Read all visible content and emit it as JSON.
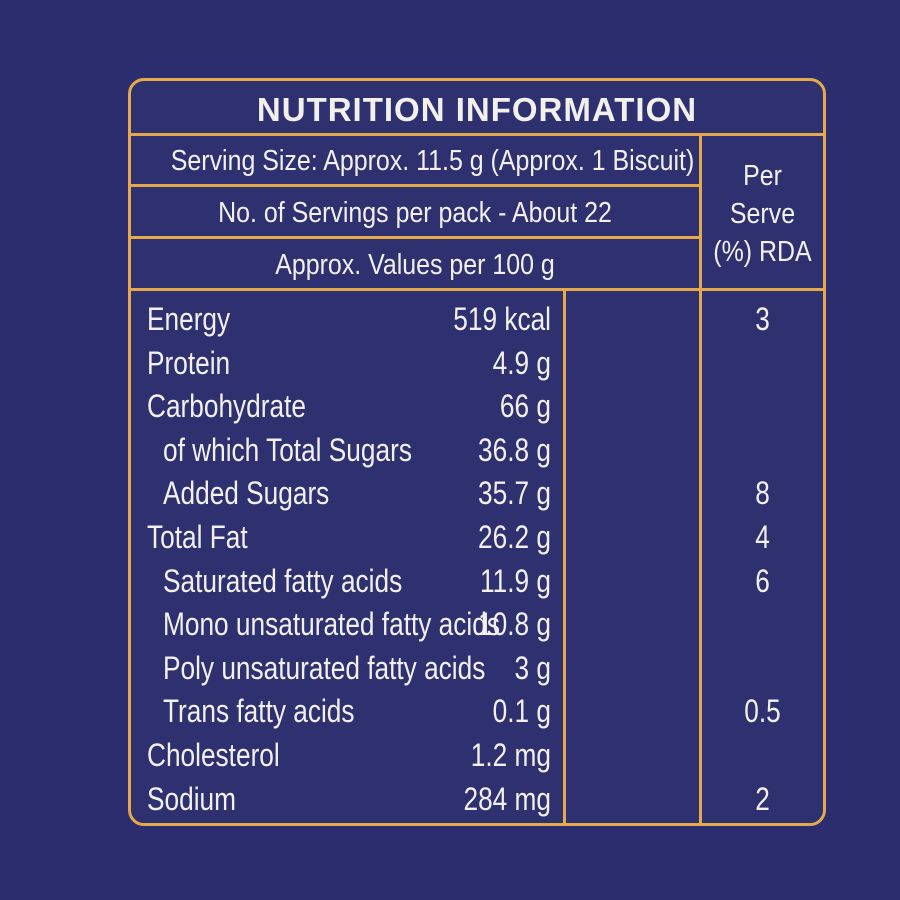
{
  "title": "NUTRITION INFORMATION",
  "serving_size": "Serving Size: Approx. 11.5 g (Approx. 1 Biscuit)",
  "servings_per_pack": "No. of Servings per pack - About 22",
  "values_per": "Approx. Values per 100 g",
  "rda_header": [
    "Per",
    "Serve",
    "(%) RDA"
  ],
  "rows": [
    {
      "name": "Energy",
      "value": "519 kcal",
      "rda": "3",
      "indent": false
    },
    {
      "name": "Protein",
      "value": "4.9 g",
      "rda": "",
      "indent": false
    },
    {
      "name": "Carbohydrate",
      "value": "66 g",
      "rda": "",
      "indent": false
    },
    {
      "name": "of which Total Sugars",
      "value": "36.8 g",
      "rda": "",
      "indent": true
    },
    {
      "name": "Added Sugars",
      "value": "35.7 g",
      "rda": "8",
      "indent": true
    },
    {
      "name": "Total Fat",
      "value": "26.2 g",
      "rda": "4",
      "indent": false
    },
    {
      "name": "Saturated fatty acids",
      "value": "11.9 g",
      "rda": "6",
      "indent": true
    },
    {
      "name": "Mono unsaturated fatty acids",
      "value": "10.8 g",
      "rda": "",
      "indent": true
    },
    {
      "name": "Poly unsaturated fatty acids",
      "value": "3 g",
      "rda": "",
      "indent": true
    },
    {
      "name": "Trans fatty acids",
      "value": "0.1 g",
      "rda": "0.5",
      "indent": true
    },
    {
      "name": "Cholesterol",
      "value": "1.2 mg",
      "rda": "",
      "indent": false
    },
    {
      "name": "Sodium",
      "value": "284 mg",
      "rda": "2",
      "indent": false
    }
  ]
}
